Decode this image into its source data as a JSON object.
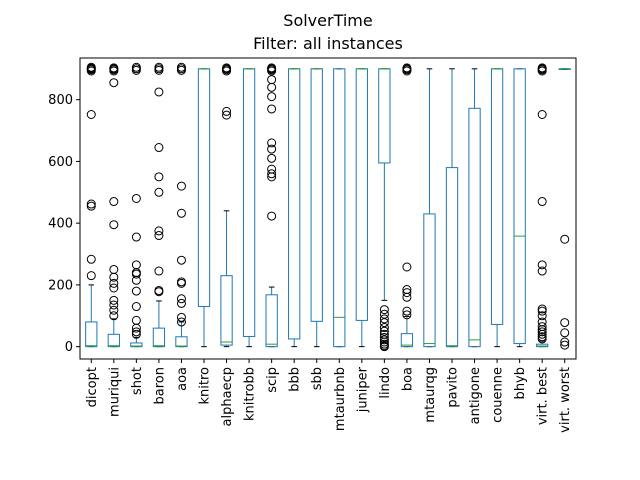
{
  "chart_data": {
    "type": "box",
    "title": "SolverTime",
    "subtitle": "Filter: all instances",
    "xlabel": "",
    "ylabel": "",
    "ylim": [
      -40,
      935
    ],
    "yticks": [
      0,
      200,
      400,
      600,
      800
    ],
    "colors": {
      "box": "#1f77b4",
      "median": "#2ca02c",
      "outlier": "#000000"
    },
    "series": [
      {
        "name": "dicopt",
        "whislo": 0,
        "q1": 0,
        "median": 3,
        "q3": 80,
        "whishi": 200,
        "outliers": [
          230,
          283,
          455,
          462,
          752,
          893,
          897,
          900,
          902,
          905
        ]
      },
      {
        "name": "muriqui",
        "whislo": 0,
        "q1": 0,
        "median": 3,
        "q3": 40,
        "whishi": 90,
        "outliers": [
          100,
          118,
          135,
          150,
          190,
          205,
          225,
          250,
          395,
          470,
          855,
          893,
          897,
          900,
          903
        ]
      },
      {
        "name": "shot",
        "whislo": 0,
        "q1": 0,
        "median": 2,
        "q3": 12,
        "whishi": 30,
        "outliers": [
          40,
          48,
          60,
          85,
          130,
          180,
          215,
          235,
          240,
          265,
          355,
          480,
          895,
          900,
          905
        ]
      },
      {
        "name": "baron",
        "whislo": 0,
        "q1": 0,
        "median": 3,
        "q3": 60,
        "whishi": 148,
        "outliers": [
          178,
          182,
          245,
          360,
          375,
          500,
          550,
          645,
          825,
          895,
          900,
          905
        ]
      },
      {
        "name": "aoa",
        "whislo": 0,
        "q1": 0,
        "median": 2,
        "q3": 32,
        "whishi": 80,
        "outliers": [
          80,
          95,
          140,
          155,
          205,
          210,
          280,
          432,
          520,
          895,
          900,
          905
        ]
      },
      {
        "name": "knitro",
        "whislo": 0,
        "q1": 130,
        "median": 900,
        "q3": 900,
        "whishi": 900,
        "outliers": []
      },
      {
        "name": "alphaecp",
        "whislo": 0,
        "q1": 5,
        "median": 15,
        "q3": 230,
        "whishi": 440,
        "outliers": [
          750,
          762,
          893,
          897,
          900,
          903
        ]
      },
      {
        "name": "knitrobb",
        "whislo": 0,
        "q1": 33,
        "median": 900,
        "q3": 900,
        "whishi": 900,
        "outliers": []
      },
      {
        "name": "scip",
        "whislo": 0,
        "q1": 0,
        "median": 8,
        "q3": 168,
        "whishi": 193,
        "outliers": [
          423,
          550,
          560,
          575,
          610,
          640,
          660,
          770,
          810,
          840,
          865,
          893,
          897,
          900,
          903
        ]
      },
      {
        "name": "bbb",
        "whislo": 0,
        "q1": 25,
        "median": 900,
        "q3": 900,
        "whishi": 900,
        "outliers": []
      },
      {
        "name": "sbb",
        "whislo": 0,
        "q1": 82,
        "median": 900,
        "q3": 900,
        "whishi": 900,
        "outliers": []
      },
      {
        "name": "mtaurbnb",
        "whislo": 0,
        "q1": 0,
        "median": 95,
        "q3": 900,
        "whishi": 900,
        "outliers": []
      },
      {
        "name": "juniper",
        "whislo": 0,
        "q1": 85,
        "median": 900,
        "q3": 900,
        "whishi": 900,
        "outliers": []
      },
      {
        "name": "lindo",
        "whislo": 150,
        "q1": 595,
        "median": 900,
        "q3": 900,
        "whishi": 900,
        "outliers": [
          0,
          3,
          8,
          15,
          22,
          30,
          40,
          50,
          62,
          78,
          90,
          105,
          120
        ]
      },
      {
        "name": "boa",
        "whislo": 0,
        "q1": 0,
        "median": 5,
        "q3": 42,
        "whishi": 98,
        "outliers": [
          103,
          115,
          160,
          175,
          185,
          258,
          893,
          897,
          900,
          903
        ]
      },
      {
        "name": "mtaurqg",
        "whislo": 0,
        "q1": 0,
        "median": 10,
        "q3": 430,
        "whishi": 900,
        "outliers": []
      },
      {
        "name": "pavito",
        "whislo": 0,
        "q1": 0,
        "median": 3,
        "q3": 580,
        "whishi": 900,
        "outliers": []
      },
      {
        "name": "antigone",
        "whislo": 0,
        "q1": 0,
        "median": 22,
        "q3": 772,
        "whishi": 900,
        "outliers": []
      },
      {
        "name": "couenne",
        "whislo": 0,
        "q1": 72,
        "median": 900,
        "q3": 900,
        "whishi": 900,
        "outliers": []
      },
      {
        "name": "bhyb",
        "whislo": 0,
        "q1": 10,
        "median": 358,
        "q3": 900,
        "whishi": 900,
        "outliers": []
      },
      {
        "name": "virt. best",
        "whislo": 0,
        "q1": 0,
        "median": 2,
        "q3": 8,
        "whishi": 18,
        "outliers": [
          25,
          32,
          40,
          48,
          55,
          65,
          80,
          100,
          115,
          122,
          245,
          265,
          470,
          752,
          893,
          897,
          900,
          903
        ]
      },
      {
        "name": "virt. worst",
        "whislo": 898,
        "q1": 898,
        "median": 900,
        "q3": 900,
        "whishi": 900,
        "outliers": [
          5,
          15,
          45,
          78,
          348
        ]
      }
    ]
  }
}
